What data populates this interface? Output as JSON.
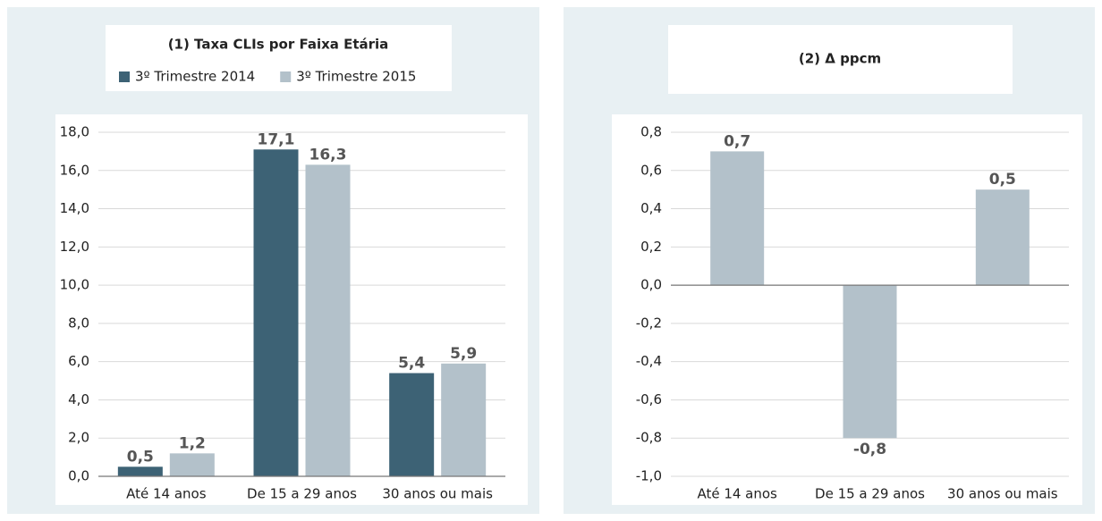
{
  "chart_data": [
    {
      "type": "bar",
      "title": "(1) Taxa CLIs por Faixa Etária",
      "categories": [
        "Até 14 anos",
        "De 15 a 29 anos",
        "30 anos ou mais"
      ],
      "series": [
        {
          "name": "3º Trimestre 2014",
          "color": "#3d6275",
          "values": [
            0.5,
            17.1,
            5.4
          ],
          "value_labels": [
            "0,5",
            "17,1",
            "5,4"
          ]
        },
        {
          "name": "3º Trimestre 2015",
          "color": "#b3c1ca",
          "values": [
            1.2,
            16.3,
            5.9
          ],
          "value_labels": [
            "1,2",
            "16,3",
            "5,9"
          ]
        }
      ],
      "ylim": [
        0,
        18
      ],
      "yticks": [
        {
          "value": 0,
          "label": "0,0"
        },
        {
          "value": 2,
          "label": "2,0"
        },
        {
          "value": 4,
          "label": "4,0"
        },
        {
          "value": 6,
          "label": "6,0"
        },
        {
          "value": 8,
          "label": "8,0"
        },
        {
          "value": 10,
          "label": "10,0"
        },
        {
          "value": 12,
          "label": "12,0"
        },
        {
          "value": 14,
          "label": "14,0"
        },
        {
          "value": 16,
          "label": "16,0"
        },
        {
          "value": 18,
          "label": "18,0"
        }
      ],
      "grid": true
    },
    {
      "type": "bar",
      "title": "(2) Δ ppcm",
      "categories": [
        "Até 14 anos",
        "De 15 a 29 anos",
        "30 anos ou mais"
      ],
      "values": [
        0.7,
        -0.8,
        0.5
      ],
      "value_labels": [
        "0,7",
        "-0,8",
        "0,5"
      ],
      "color": "#b3c1ca",
      "ylim": [
        -1,
        0.8
      ],
      "yticks": [
        {
          "value": -1,
          "label": "-1,0"
        },
        {
          "value": -0.8,
          "label": "-0,8"
        },
        {
          "value": -0.6,
          "label": "-0,6"
        },
        {
          "value": -0.4,
          "label": "-0,4"
        },
        {
          "value": -0.2,
          "label": "-0,2"
        },
        {
          "value": 0,
          "label": "0,0"
        },
        {
          "value": 0.2,
          "label": "0,2"
        },
        {
          "value": 0.4,
          "label": "0,4"
        },
        {
          "value": 0.6,
          "label": "0,6"
        },
        {
          "value": 0.8,
          "label": "0,8"
        }
      ],
      "grid": true
    }
  ]
}
